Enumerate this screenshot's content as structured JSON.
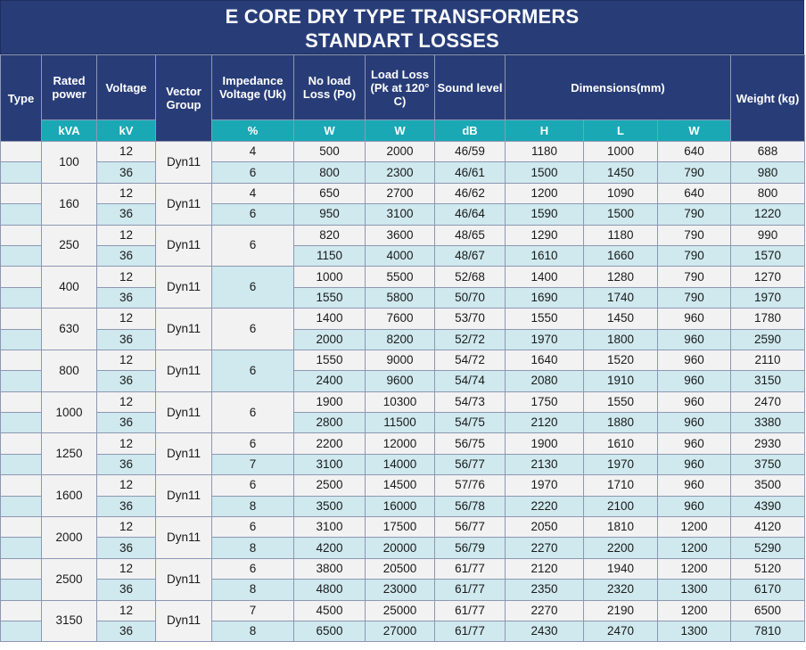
{
  "title": {
    "line1": "E CORE DRY TYPE TRANSFORMERS",
    "line2": "STANDART LOSSES"
  },
  "colors": {
    "header_bg": "#283d78",
    "subheader_bg": "#1aa8b5",
    "row_light": "#f2f2f2",
    "row_teal": "#cfe9ee"
  },
  "headers": {
    "type": "Type",
    "rated_power": "Rated power",
    "voltage": "Voltage",
    "vector_group": "Vector Group",
    "impedance": "Impedance Voltage (Uk)",
    "no_load": "No load Loss (Po)",
    "load_loss": "Load Loss (Pk at 120° C)",
    "sound": "Sound level",
    "dimensions": "Dimensions(mm)",
    "weight": "Weight (kg)"
  },
  "units": {
    "rated_power": "kVA",
    "voltage": "kV",
    "impedance": "%",
    "no_load": "W",
    "load_loss": "W",
    "sound": "dB",
    "dim_h": "H",
    "dim_l": "L",
    "dim_w": "W"
  },
  "rows": [
    {
      "power": "100",
      "vector": "Dyn11",
      "uk_merged": false,
      "lines": [
        {
          "kv": "12",
          "uk": "4",
          "po": "500",
          "pk": "2000",
          "db": "46/59",
          "h": "1180",
          "l": "1000",
          "w": "640",
          "kg": "688"
        },
        {
          "kv": "36",
          "uk": "6",
          "po": "800",
          "pk": "2300",
          "db": "46/61",
          "h": "1500",
          "l": "1450",
          "w": "790",
          "kg": "980"
        }
      ]
    },
    {
      "power": "160",
      "vector": "Dyn11",
      "uk_merged": false,
      "lines": [
        {
          "kv": "12",
          "uk": "4",
          "po": "650",
          "pk": "2700",
          "db": "46/62",
          "h": "1200",
          "l": "1090",
          "w": "640",
          "kg": "800"
        },
        {
          "kv": "36",
          "uk": "6",
          "po": "950",
          "pk": "3100",
          "db": "46/64",
          "h": "1590",
          "l": "1500",
          "w": "790",
          "kg": "1220"
        }
      ]
    },
    {
      "power": "250",
      "vector": "Dyn11",
      "uk_merged": true,
      "uk": "6",
      "uk_teal": false,
      "lines": [
        {
          "kv": "12",
          "po": "820",
          "pk": "3600",
          "db": "48/65",
          "h": "1290",
          "l": "1180",
          "w": "790",
          "kg": "990"
        },
        {
          "kv": "36",
          "po": "1150",
          "pk": "4000",
          "db": "48/67",
          "h": "1610",
          "l": "1660",
          "w": "790",
          "kg": "1570"
        }
      ]
    },
    {
      "power": "400",
      "vector": "Dyn11",
      "uk_merged": true,
      "uk": "6",
      "uk_teal": true,
      "lines": [
        {
          "kv": "12",
          "po": "1000",
          "pk": "5500",
          "db": "52/68",
          "h": "1400",
          "l": "1280",
          "w": "790",
          "kg": "1270"
        },
        {
          "kv": "36",
          "po": "1550",
          "pk": "5800",
          "db": "50/70",
          "h": "1690",
          "l": "1740",
          "w": "790",
          "kg": "1970"
        }
      ]
    },
    {
      "power": "630",
      "vector": "Dyn11",
      "uk_merged": true,
      "uk": "6",
      "uk_teal": false,
      "lines": [
        {
          "kv": "12",
          "po": "1400",
          "pk": "7600",
          "db": "53/70",
          "h": "1550",
          "l": "1450",
          "w": "960",
          "kg": "1780"
        },
        {
          "kv": "36",
          "po": "2000",
          "pk": "8200",
          "db": "52/72",
          "h": "1970",
          "l": "1800",
          "w": "960",
          "kg": "2590"
        }
      ]
    },
    {
      "power": "800",
      "vector": "Dyn11",
      "uk_merged": true,
      "uk": "6",
      "uk_teal": true,
      "lines": [
        {
          "kv": "12",
          "po": "1550",
          "pk": "9000",
          "db": "54/72",
          "h": "1640",
          "l": "1520",
          "w": "960",
          "kg": "2110"
        },
        {
          "kv": "36",
          "po": "2400",
          "pk": "9600",
          "db": "54/74",
          "h": "2080",
          "l": "1910",
          "w": "960",
          "kg": "3150"
        }
      ]
    },
    {
      "power": "1000",
      "vector": "Dyn11",
      "uk_merged": true,
      "uk": "6",
      "uk_teal": false,
      "lines": [
        {
          "kv": "12",
          "po": "1900",
          "pk": "10300",
          "db": "54/73",
          "h": "1750",
          "l": "1550",
          "w": "960",
          "kg": "2470"
        },
        {
          "kv": "36",
          "po": "2800",
          "pk": "11500",
          "db": "54/75",
          "h": "2120",
          "l": "1880",
          "w": "960",
          "kg": "3380"
        }
      ]
    },
    {
      "power": "1250",
      "vector": "Dyn11",
      "uk_merged": false,
      "lines": [
        {
          "kv": "12",
          "uk": "6",
          "po": "2200",
          "pk": "12000",
          "db": "56/75",
          "h": "1900",
          "l": "1610",
          "w": "960",
          "kg": "2930"
        },
        {
          "kv": "36",
          "uk": "7",
          "po": "3100",
          "pk": "14000",
          "db": "56/77",
          "h": "2130",
          "l": "1970",
          "w": "960",
          "kg": "3750"
        }
      ]
    },
    {
      "power": "1600",
      "vector": "Dyn11",
      "uk_merged": false,
      "lines": [
        {
          "kv": "12",
          "uk": "6",
          "po": "2500",
          "pk": "14500",
          "db": "57/76",
          "h": "1970",
          "l": "1710",
          "w": "960",
          "kg": "3500"
        },
        {
          "kv": "36",
          "uk": "8",
          "po": "3500",
          "pk": "16000",
          "db": "56/78",
          "h": "2220",
          "l": "2100",
          "w": "960",
          "kg": "4390"
        }
      ]
    },
    {
      "power": "2000",
      "vector": "Dyn11",
      "uk_merged": false,
      "lines": [
        {
          "kv": "12",
          "uk": "6",
          "po": "3100",
          "pk": "17500",
          "db": "56/77",
          "h": "2050",
          "l": "1810",
          "w": "1200",
          "kg": "4120"
        },
        {
          "kv": "36",
          "uk": "8",
          "po": "4200",
          "pk": "20000",
          "db": "56/79",
          "h": "2270",
          "l": "2200",
          "w": "1200",
          "kg": "5290"
        }
      ]
    },
    {
      "power": "2500",
      "vector": "Dyn11",
      "uk_merged": false,
      "lines": [
        {
          "kv": "12",
          "uk": "6",
          "po": "3800",
          "pk": "20500",
          "db": "61/77",
          "h": "2120",
          "l": "1940",
          "w": "1200",
          "kg": "5120"
        },
        {
          "kv": "36",
          "uk": "8",
          "po": "4800",
          "pk": "23000",
          "db": "61/77",
          "h": "2350",
          "l": "2320",
          "w": "1300",
          "kg": "6170"
        }
      ]
    },
    {
      "power": "3150",
      "vector": "Dyn11",
      "uk_merged": false,
      "lines": [
        {
          "kv": "12",
          "uk": "7",
          "po": "4500",
          "pk": "25000",
          "db": "61/77",
          "h": "2270",
          "l": "2190",
          "w": "1200",
          "kg": "6500"
        },
        {
          "kv": "36",
          "uk": "8",
          "po": "6500",
          "pk": "27000",
          "db": "61/77",
          "h": "2430",
          "l": "2470",
          "w": "1300",
          "kg": "7810"
        }
      ]
    }
  ]
}
